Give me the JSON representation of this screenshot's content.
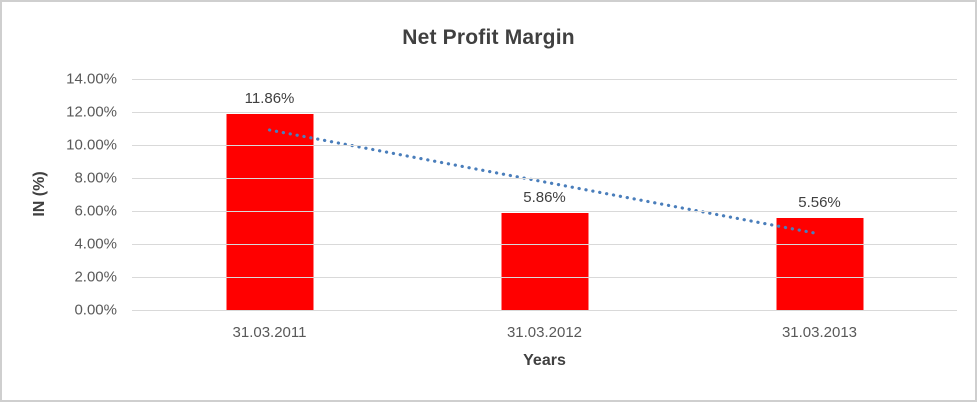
{
  "chart": {
    "background": "#ffffff",
    "frame_border_color": "#cfcfcf",
    "gridline_color": "#d9d9d9",
    "title_color": "#404040",
    "tick_label_color": "#595959"
  },
  "chart_data": {
    "type": "bar",
    "title": "Net Profit Margin",
    "categories": [
      "31.03.2011",
      "31.03.2012",
      "31.03.2013"
    ],
    "values": [
      11.86,
      5.86,
      5.56
    ],
    "value_labels": [
      "11.86%",
      "5.86%",
      "5.56%"
    ],
    "xlabel": "Years",
    "ylabel": "IN (%)",
    "ylim": [
      0,
      14
    ],
    "ytick_step": 2,
    "ytick_labels": [
      "0.00%",
      "2.00%",
      "4.00%",
      "6.00%",
      "8.00%",
      "10.00%",
      "12.00%",
      "14.00%"
    ],
    "grid": true,
    "legend": "none",
    "bar_color": "#ff0000",
    "trendline": {
      "type": "linear",
      "style": "dotted",
      "color": "#4a7ebb",
      "start_value": 10.91,
      "end_value": 4.61
    }
  }
}
